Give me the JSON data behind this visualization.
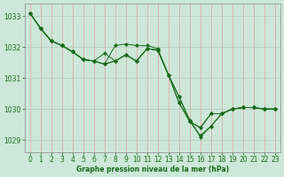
{
  "title": "Graphe pression niveau de la mer (hPa)",
  "bg_color": "#cce8d8",
  "vgrid_color": "#e8a0a0",
  "hgrid_color": "#b0c8b8",
  "line_color": "#1a6b1a",
  "marker_color": "#1a6b1a",
  "xlim": [
    -0.5,
    23.5
  ],
  "ylim": [
    1028.6,
    1033.4
  ],
  "yticks": [
    1029,
    1030,
    1031,
    1032,
    1033
  ],
  "xticks": [
    0,
    1,
    2,
    3,
    4,
    5,
    6,
    7,
    8,
    9,
    10,
    11,
    12,
    13,
    14,
    15,
    16,
    17,
    18,
    19,
    20,
    21,
    22,
    23
  ],
  "series": [
    [
      1033.1,
      1032.6,
      1032.2,
      1032.05,
      1031.85,
      1031.6,
      1031.55,
      1031.45,
      1032.05,
      1032.1,
      1032.05,
      1032.05,
      1031.95,
      1031.1,
      1030.4,
      1029.65,
      1029.1,
      1029.45,
      1029.85,
      1030.0,
      1030.05,
      1030.05,
      1030.0,
      1030.0
    ],
    [
      1033.1,
      1032.6,
      1032.2,
      1032.05,
      1031.85,
      1031.6,
      1031.55,
      1031.8,
      1031.55,
      1031.75,
      1031.55,
      1031.95,
      1031.9,
      1031.1,
      1030.4,
      1029.6,
      1029.4,
      1029.85,
      1029.85,
      1030.0,
      1030.05,
      1030.05,
      1030.0,
      1030.0
    ],
    [
      1033.1,
      1032.6,
      1032.2,
      1032.05,
      1031.85,
      1031.6,
      1031.55,
      1031.45,
      1031.55,
      1031.75,
      1031.55,
      1031.95,
      1031.9,
      1031.1,
      1030.2,
      1029.6,
      1029.15,
      1029.45,
      1029.85,
      1030.0,
      1030.05,
      1030.05,
      1030.0,
      1030.0
    ],
    [
      1033.1,
      1032.6,
      1032.2,
      1032.05,
      1031.85,
      1031.6,
      1031.55,
      1031.45,
      1031.55,
      1031.75,
      1031.55,
      1031.95,
      1031.9,
      1031.1,
      1030.2,
      1029.6,
      1029.4,
      1029.85,
      1029.85,
      1030.0,
      1030.05,
      1030.05,
      1030.0,
      1030.0
    ]
  ]
}
